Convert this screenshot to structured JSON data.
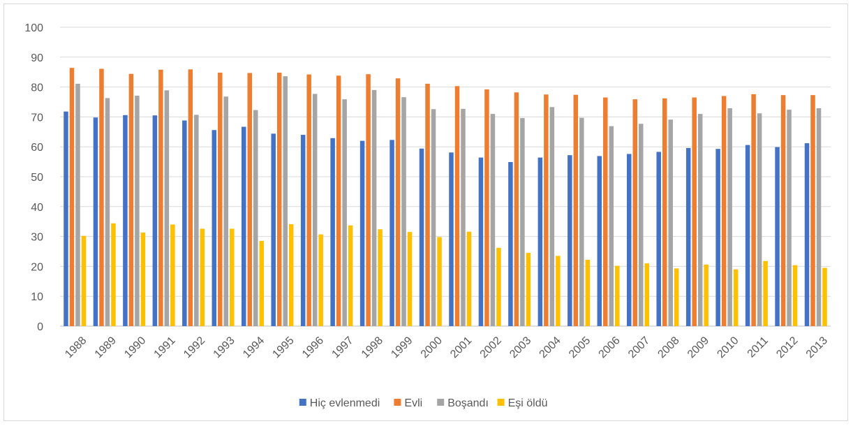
{
  "chart_data": {
    "type": "bar",
    "title": "",
    "xlabel": "",
    "ylabel": "",
    "ylim": [
      0,
      100
    ],
    "yticks": [
      "0",
      "10",
      "20",
      "30",
      "40",
      "50",
      "60",
      "70",
      "80",
      "90",
      "100"
    ],
    "grid": true,
    "legend_position": "bottom",
    "categories": [
      "1988",
      "1989",
      "1990",
      "1991",
      "1992",
      "1993",
      "1994",
      "1995",
      "1996",
      "1997",
      "1998",
      "1999",
      "2000",
      "2001",
      "2002",
      "2003",
      "2004",
      "2005",
      "2006",
      "2007",
      "2008",
      "2009",
      "2010",
      "2011",
      "2012",
      "2013"
    ],
    "series": [
      {
        "name": "Hiç evlenmedi",
        "color": "#4472c4",
        "values": [
          71.8,
          69.8,
          70.6,
          70.5,
          68.8,
          65.6,
          66.7,
          64.4,
          64.0,
          62.9,
          62.0,
          62.3,
          59.4,
          58.1,
          56.4,
          54.9,
          56.4,
          57.2,
          56.9,
          57.6,
          58.3,
          59.6,
          59.3,
          60.6,
          59.9,
          61.2
        ]
      },
      {
        "name": "Evli",
        "color": "#ed7d31",
        "values": [
          86.4,
          86.1,
          84.4,
          85.8,
          85.9,
          84.8,
          84.7,
          84.8,
          84.2,
          83.8,
          84.3,
          82.9,
          81.1,
          80.3,
          79.2,
          78.2,
          77.5,
          77.4,
          76.5,
          75.9,
          76.2,
          76.5,
          77.0,
          77.6,
          77.3,
          77.3
        ]
      },
      {
        "name": "Boşandı",
        "color": "#a5a5a5",
        "values": [
          81.1,
          76.3,
          77.1,
          78.9,
          70.7,
          76.8,
          72.3,
          83.6,
          77.7,
          75.9,
          79.0,
          76.6,
          72.6,
          72.7,
          71.0,
          69.6,
          73.3,
          69.7,
          66.9,
          67.7,
          69.1,
          71.0,
          72.9,
          71.2,
          72.4,
          72.9
        ]
      },
      {
        "name": "Eşi öldü",
        "color": "#ffc000",
        "values": [
          30.2,
          34.4,
          31.3,
          34.0,
          32.6,
          32.6,
          28.5,
          34.1,
          30.7,
          33.7,
          32.4,
          31.5,
          29.8,
          31.6,
          26.2,
          24.5,
          23.5,
          22.2,
          20.2,
          21.0,
          19.3,
          20.6,
          19.0,
          21.8,
          20.4,
          19.5
        ]
      }
    ]
  }
}
